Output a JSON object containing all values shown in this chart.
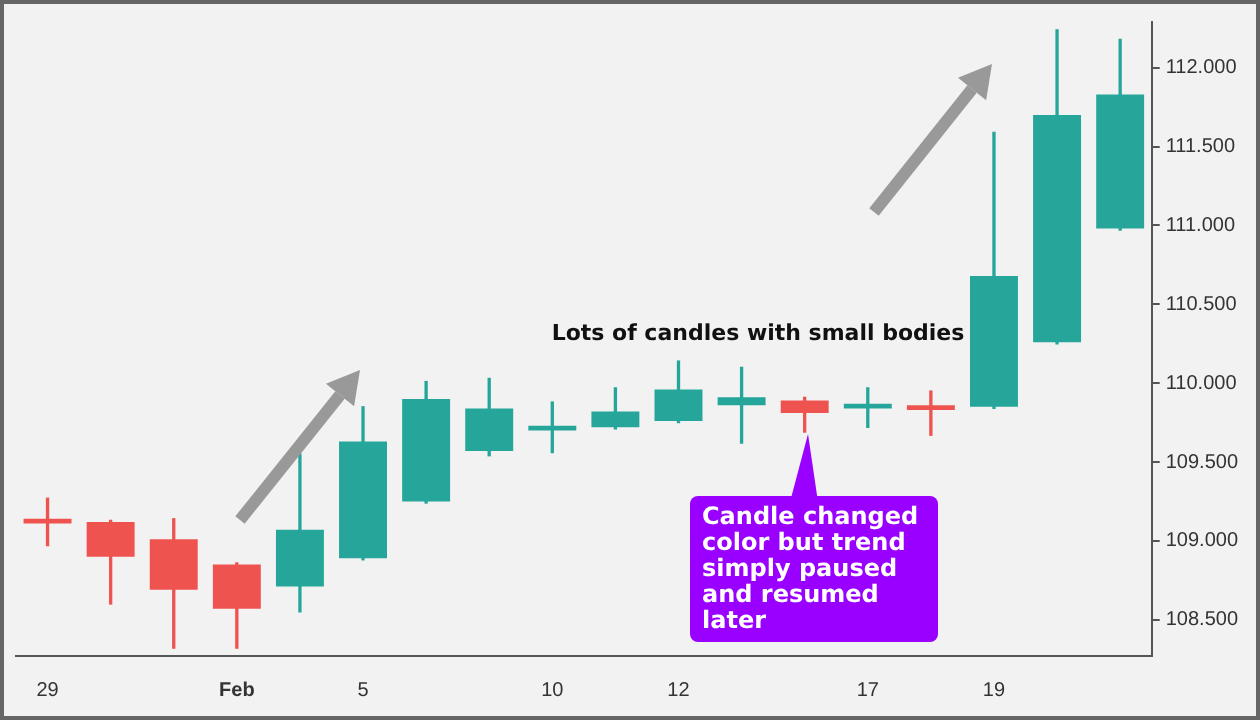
{
  "chart_data": {
    "type": "candlestick",
    "categories": [
      "29",
      null,
      null,
      "Feb",
      null,
      "5",
      null,
      null,
      "10",
      null,
      "12",
      null,
      null,
      "17",
      null,
      "19",
      null,
      null
    ],
    "ohlc": [
      [
        109.14,
        109.27,
        108.97,
        109.11
      ],
      [
        109.12,
        109.13,
        108.6,
        108.9
      ],
      [
        109.01,
        109.14,
        108.32,
        108.69
      ],
      [
        108.85,
        108.86,
        108.32,
        108.57
      ],
      [
        108.71,
        109.55,
        108.55,
        109.07
      ],
      [
        108.89,
        109.85,
        108.88,
        109.63
      ],
      [
        109.25,
        110.01,
        109.24,
        109.9
      ],
      [
        109.57,
        110.03,
        109.54,
        109.84
      ],
      [
        109.7,
        109.88,
        109.56,
        109.73
      ],
      [
        109.72,
        109.97,
        109.71,
        109.82
      ],
      [
        109.76,
        110.14,
        109.75,
        109.96
      ],
      [
        109.86,
        110.1,
        109.62,
        109.91
      ],
      [
        109.89,
        109.91,
        109.69,
        109.81
      ],
      [
        109.84,
        109.97,
        109.72,
        109.87
      ],
      [
        109.86,
        109.95,
        109.67,
        109.83
      ],
      [
        109.85,
        111.59,
        109.84,
        110.68
      ],
      [
        110.26,
        112.24,
        110.25,
        111.7
      ],
      [
        110.98,
        112.18,
        110.97,
        111.83
      ]
    ],
    "colors": [
      "#ef5350",
      "#ef5350",
      "#ef5350",
      "#ef5350",
      "#26a69a",
      "#26a69a",
      "#26a69a",
      "#26a69a",
      "#26a69a",
      "#26a69a",
      "#26a69a",
      "#26a69a",
      "#ef5350",
      "#26a69a",
      "#ef5350",
      "#26a69a",
      "#26a69a",
      "#26a69a"
    ],
    "ylim": [
      108.27,
      112.29
    ],
    "yticks": [
      {
        "value": 108.5,
        "label": "108.500"
      },
      {
        "value": 109,
        "label": "109.000"
      },
      {
        "value": 109.5,
        "label": "109.500"
      },
      {
        "value": 110,
        "label": "110.000"
      },
      {
        "value": 110.5,
        "label": "110.500"
      },
      {
        "value": 111,
        "label": "111.000"
      },
      {
        "value": 111.5,
        "label": "111.500"
      },
      {
        "value": 112,
        "label": "112.000"
      }
    ],
    "annotations": [
      "Lots of candles with small bodies",
      "Candle changed color but trend simply paused and resumed later"
    ]
  }
}
